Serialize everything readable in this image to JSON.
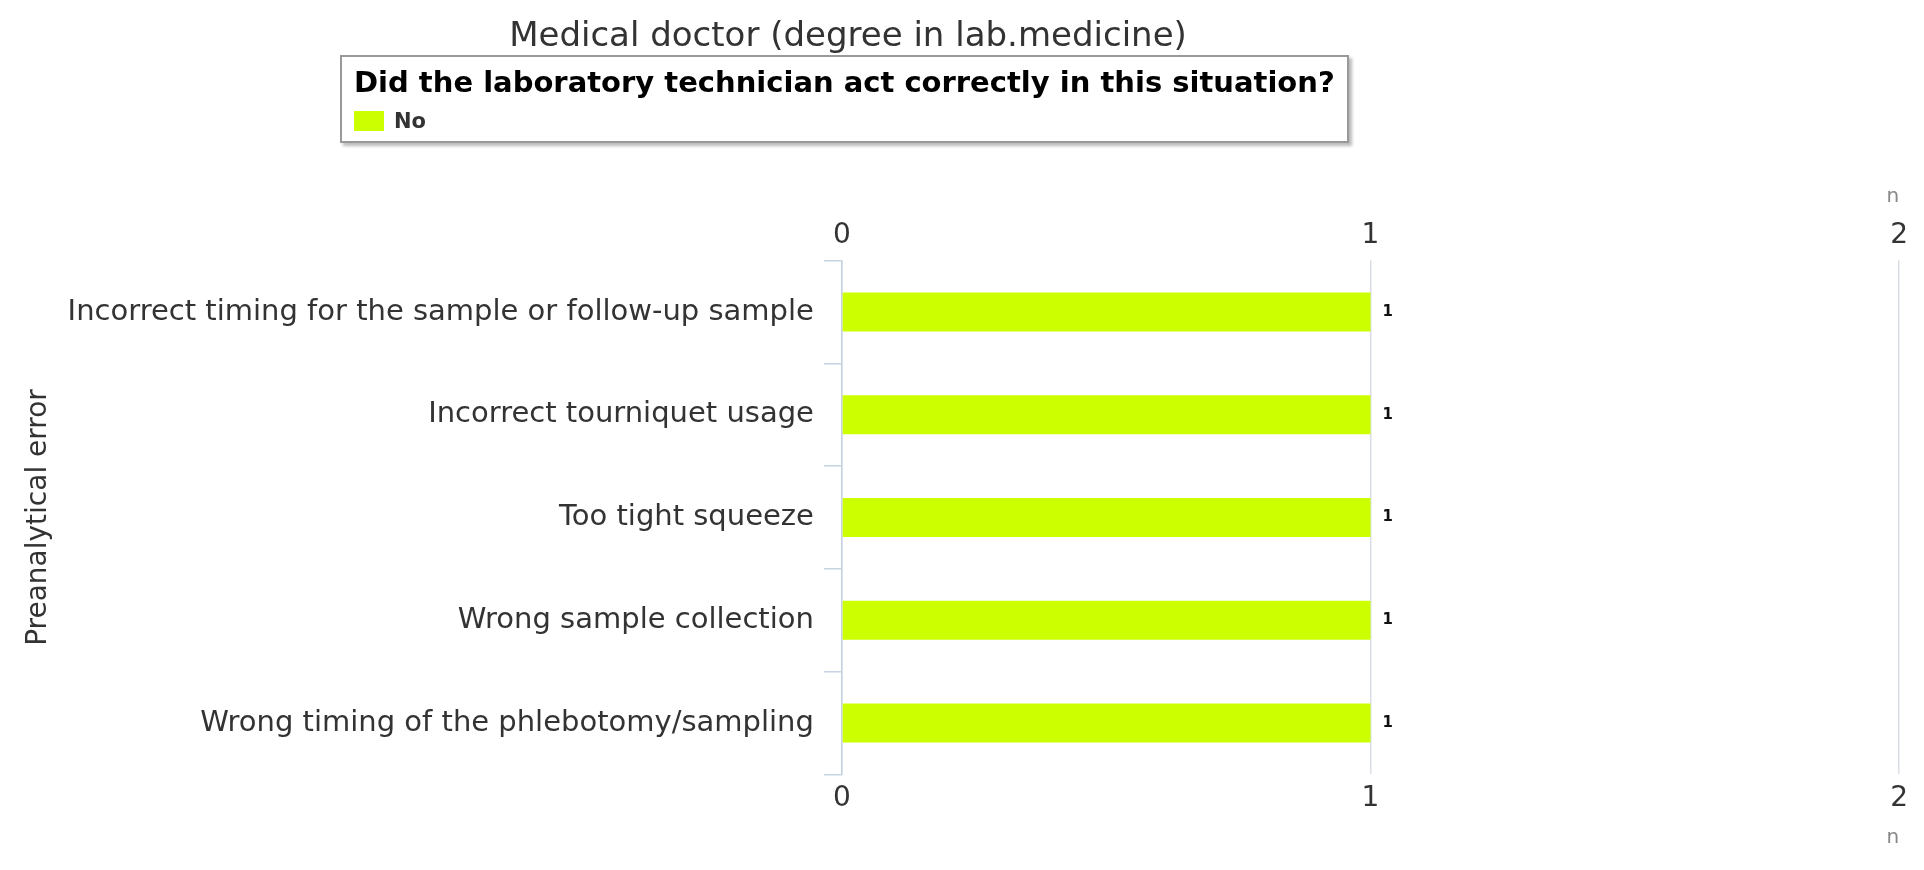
{
  "chart_data": {
    "type": "bar",
    "orientation": "horizontal",
    "title": "Medical doctor (degree in lab.medicine)",
    "legend_title": "Did the laboratory technician act correctly in this situation?",
    "legend": "top",
    "ylabel": "Preanalytical error",
    "xlabel": "n",
    "x2label": "n",
    "categories": [
      "Incorrect timing for the sample or follow-up sample",
      "Incorrect tourniquet usage",
      "Too tight squeeze",
      "Wrong sample collection",
      "Wrong timing of the phlebotomy/sampling"
    ],
    "series": [
      {
        "name": "No",
        "color": "#ccff00",
        "values": [
          1,
          1,
          1,
          1,
          1
        ]
      }
    ],
    "xlim": [
      0,
      2
    ],
    "xticks": [
      0,
      1,
      2
    ],
    "x2lim": [
      0,
      2
    ],
    "x2ticks": [
      0,
      1,
      2
    ],
    "grid": "x",
    "data_labels": true
  }
}
